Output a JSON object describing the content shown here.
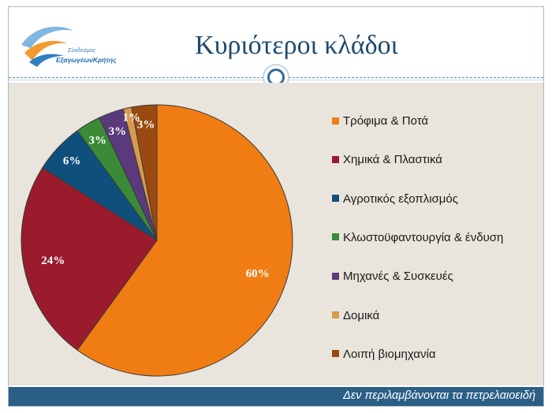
{
  "header": {
    "title": "Κυριότεροι κλάδοι",
    "logo_line1": "Σύνδεσμος",
    "logo_line2": "ΕξαγωγέωνΚρήτης"
  },
  "footer": {
    "note": "Δεν περιλαμβάνονται τα πετρελαιοειδή"
  },
  "colors": {
    "accent": "#2b5f86",
    "background": "#e9e5dc"
  },
  "chart_data": {
    "type": "pie",
    "title": "",
    "legend_position": "right",
    "slices": [
      {
        "label": "Τρόφιμα & Ποτά",
        "value": 60,
        "display": "60%",
        "color": "#f07c14"
      },
      {
        "label": "Χημικά & Πλαστικά",
        "value": 24,
        "display": "24%",
        "color": "#9a1b2c"
      },
      {
        "label": "Αγροτικός εξοπλισμός",
        "value": 6,
        "display": "6%",
        "color": "#0f4f7c"
      },
      {
        "label": "Κλωστοϋφαντουργία & ένδυση",
        "value": 3,
        "display": "3%",
        "color": "#3b8a37"
      },
      {
        "label": "Μηχανές & Συσκευές",
        "value": 3,
        "display": "3%",
        "color": "#5a3a7a"
      },
      {
        "label": "Δομικά",
        "value": 1,
        "display": "1%",
        "color": "#d89a4c"
      },
      {
        "label": "Λοιπή βιομηχανία",
        "value": 3,
        "display": "3%",
        "color": "#9a4a10"
      }
    ]
  }
}
